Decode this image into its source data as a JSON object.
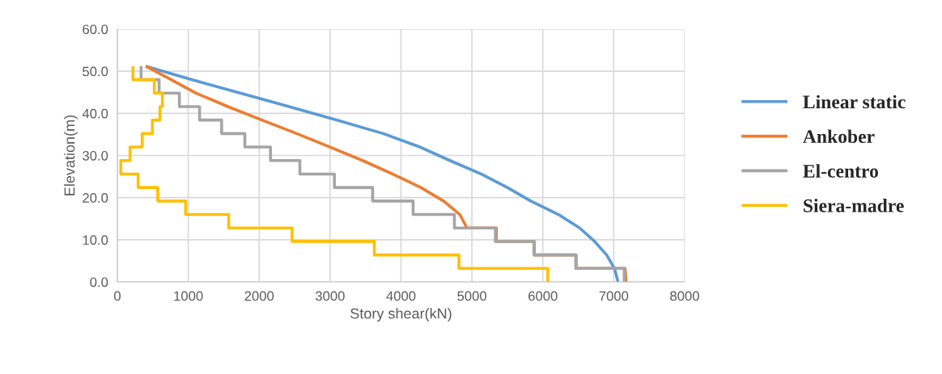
{
  "chart_data": {
    "type": "line",
    "xlabel": "Story shear(kN)",
    "ylabel": "Elevation(m)",
    "xlim": [
      0,
      8000
    ],
    "xticks": [
      0,
      1000,
      2000,
      3000,
      4000,
      5000,
      6000,
      7000,
      8000
    ],
    "ylim": [
      0,
      60
    ],
    "yticks": [
      {
        "value": 0,
        "label": "0.0"
      },
      {
        "value": 10,
        "label": "10.0"
      },
      {
        "value": 20,
        "label": "20.0"
      },
      {
        "value": 30,
        "label": "30.0"
      },
      {
        "value": 40,
        "label": "40.0"
      },
      {
        "value": 50,
        "label": "50.0"
      },
      {
        "value": 60,
        "label": "60.0"
      }
    ],
    "grid": true,
    "legend": "right",
    "marker": "none",
    "line_style": "solid",
    "series": [
      {
        "name": "Linear static",
        "color": "#5b9bd5",
        "x": [
          400,
          1046,
          1734,
          2423,
          3100,
          3750,
          4270,
          4690,
          5130,
          5500,
          5830,
          6220,
          6520,
          6730,
          6900,
          7010,
          7060
        ],
        "values": [
          51.2,
          48.0,
          44.8,
          41.6,
          38.4,
          35.2,
          32.0,
          28.8,
          25.6,
          22.4,
          19.2,
          16.0,
          12.8,
          9.6,
          6.4,
          3.2,
          0
        ]
      },
      {
        "name": "Ankober",
        "color": "#ed7d31",
        "x": [
          400,
          760,
          1110,
          1560,
          2040,
          2530,
          3000,
          3460,
          3880,
          4280,
          4600,
          4830,
          4930,
          5345,
          5345,
          5880,
          5880,
          6470,
          6470,
          7160,
          7175
        ],
        "values": [
          51.2,
          48.0,
          44.8,
          41.6,
          38.4,
          35.2,
          32.0,
          28.8,
          25.6,
          22.4,
          19.2,
          16.0,
          12.8,
          12.8,
          9.6,
          9.6,
          6.4,
          6.4,
          3.2,
          3.2,
          0
        ]
      },
      {
        "name": "El-centro",
        "color": "#a5a5a5",
        "x": [
          335,
          335,
          589,
          589,
          875,
          875,
          1160,
          1160,
          1471,
          1471,
          1798,
          1798,
          2160,
          2160,
          2574,
          2574,
          3061,
          3061,
          3600,
          3600,
          4171,
          4171,
          4753,
          4753,
          5331,
          5331,
          5875,
          5875,
          6464,
          6464,
          7148,
          7148
        ],
        "values": [
          51.2,
          48.0,
          48.0,
          44.8,
          44.8,
          41.6,
          41.6,
          38.4,
          38.4,
          35.2,
          35.2,
          32.0,
          32.0,
          28.8,
          28.8,
          25.6,
          25.6,
          22.4,
          22.4,
          19.2,
          19.2,
          16.0,
          16.0,
          12.8,
          12.8,
          9.6,
          9.6,
          6.4,
          6.4,
          3.2,
          3.2,
          0
        ]
      },
      {
        "name": "Siera-madre",
        "color": "#ffc000",
        "x": [
          220,
          220,
          521,
          521,
          635,
          635,
          601,
          601,
          494,
          494,
          350,
          350,
          179,
          179,
          49,
          49,
          293,
          293,
          570,
          570,
          962,
          962,
          1570,
          1570,
          2464,
          2464,
          3624,
          3624,
          4817,
          4817,
          6070,
          6070
        ],
        "values": [
          51.2,
          48.0,
          48.0,
          44.8,
          44.8,
          41.6,
          41.6,
          38.4,
          38.4,
          35.2,
          35.2,
          32.0,
          32.0,
          28.8,
          28.8,
          25.6,
          25.6,
          22.4,
          22.4,
          19.2,
          19.2,
          16.0,
          16.0,
          12.8,
          12.8,
          9.6,
          9.6,
          6.4,
          6.4,
          3.2,
          3.2,
          0
        ]
      }
    ]
  }
}
